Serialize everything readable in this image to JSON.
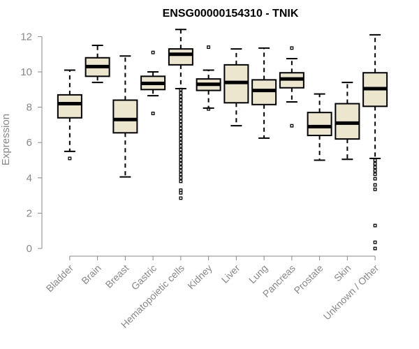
{
  "chart_data": {
    "type": "boxplot",
    "title": "ENSG00000154310 - TNIK",
    "xlabel": "",
    "ylabel": "Expression",
    "ylim": [
      0,
      12.5
    ],
    "yticks": [
      0,
      2,
      4,
      6,
      8,
      10,
      12
    ],
    "box_fill": "#ede6cf",
    "axis_color": "#888888",
    "categories": [
      "Bladder",
      "Brain",
      "Breast",
      "Gastric",
      "Hematopoietic cells",
      "Kidney",
      "Liver",
      "Lung",
      "Pancreas",
      "Prostate",
      "Skin",
      "Unknown / Other"
    ],
    "boxes": [
      {
        "whisker_low": 5.5,
        "q1": 7.4,
        "median": 8.2,
        "q3": 8.7,
        "whisker_high": 10.1,
        "outliers": [
          5.1
        ]
      },
      {
        "whisker_low": 9.4,
        "q1": 9.75,
        "median": 10.3,
        "q3": 10.8,
        "whisker_high": 11.5,
        "outliers": []
      },
      {
        "whisker_low": 4.05,
        "q1": 6.55,
        "median": 7.3,
        "q3": 8.4,
        "whisker_high": 10.9,
        "outliers": []
      },
      {
        "whisker_low": 8.65,
        "q1": 9.0,
        "median": 9.35,
        "q3": 9.75,
        "whisker_high": 10.0,
        "outliers": [
          11.1,
          7.65
        ]
      },
      {
        "whisker_low": 9.05,
        "q1": 10.4,
        "median": 11.0,
        "q3": 11.3,
        "whisker_high": 12.4,
        "outliers": [
          9.0,
          8.8,
          8.6,
          8.4,
          8.2,
          8.0,
          7.8,
          7.6,
          7.4,
          7.2,
          7.0,
          6.8,
          6.6,
          6.4,
          6.2,
          6.0,
          5.8,
          5.6,
          5.4,
          5.2,
          5.0,
          4.8,
          4.6,
          4.4,
          4.2,
          4.0,
          3.8,
          3.3,
          3.15,
          2.85
        ]
      },
      {
        "whisker_low": 7.95,
        "q1": 8.95,
        "median": 9.3,
        "q3": 9.6,
        "whisker_high": 10.1,
        "outliers": [
          11.4,
          7.9
        ]
      },
      {
        "whisker_low": 6.95,
        "q1": 8.25,
        "median": 9.4,
        "q3": 10.4,
        "whisker_high": 11.3,
        "outliers": []
      },
      {
        "whisker_low": 6.25,
        "q1": 8.15,
        "median": 8.95,
        "q3": 9.55,
        "whisker_high": 11.35,
        "outliers": []
      },
      {
        "whisker_low": 8.3,
        "q1": 9.1,
        "median": 9.6,
        "q3": 9.95,
        "whisker_high": 10.75,
        "outliers": [
          11.35,
          6.95
        ]
      },
      {
        "whisker_low": 5.0,
        "q1": 6.4,
        "median": 6.9,
        "q3": 7.7,
        "whisker_high": 8.75,
        "outliers": []
      },
      {
        "whisker_low": 5.05,
        "q1": 6.2,
        "median": 7.1,
        "q3": 8.2,
        "whisker_high": 9.4,
        "outliers": []
      },
      {
        "whisker_low": 5.1,
        "q1": 8.05,
        "median": 9.05,
        "q3": 9.95,
        "whisker_high": 12.1,
        "outliers": [
          5.0,
          4.8,
          4.6,
          4.4,
          4.2,
          3.95,
          3.6,
          3.35,
          1.3,
          0.35,
          0.0
        ]
      }
    ]
  }
}
